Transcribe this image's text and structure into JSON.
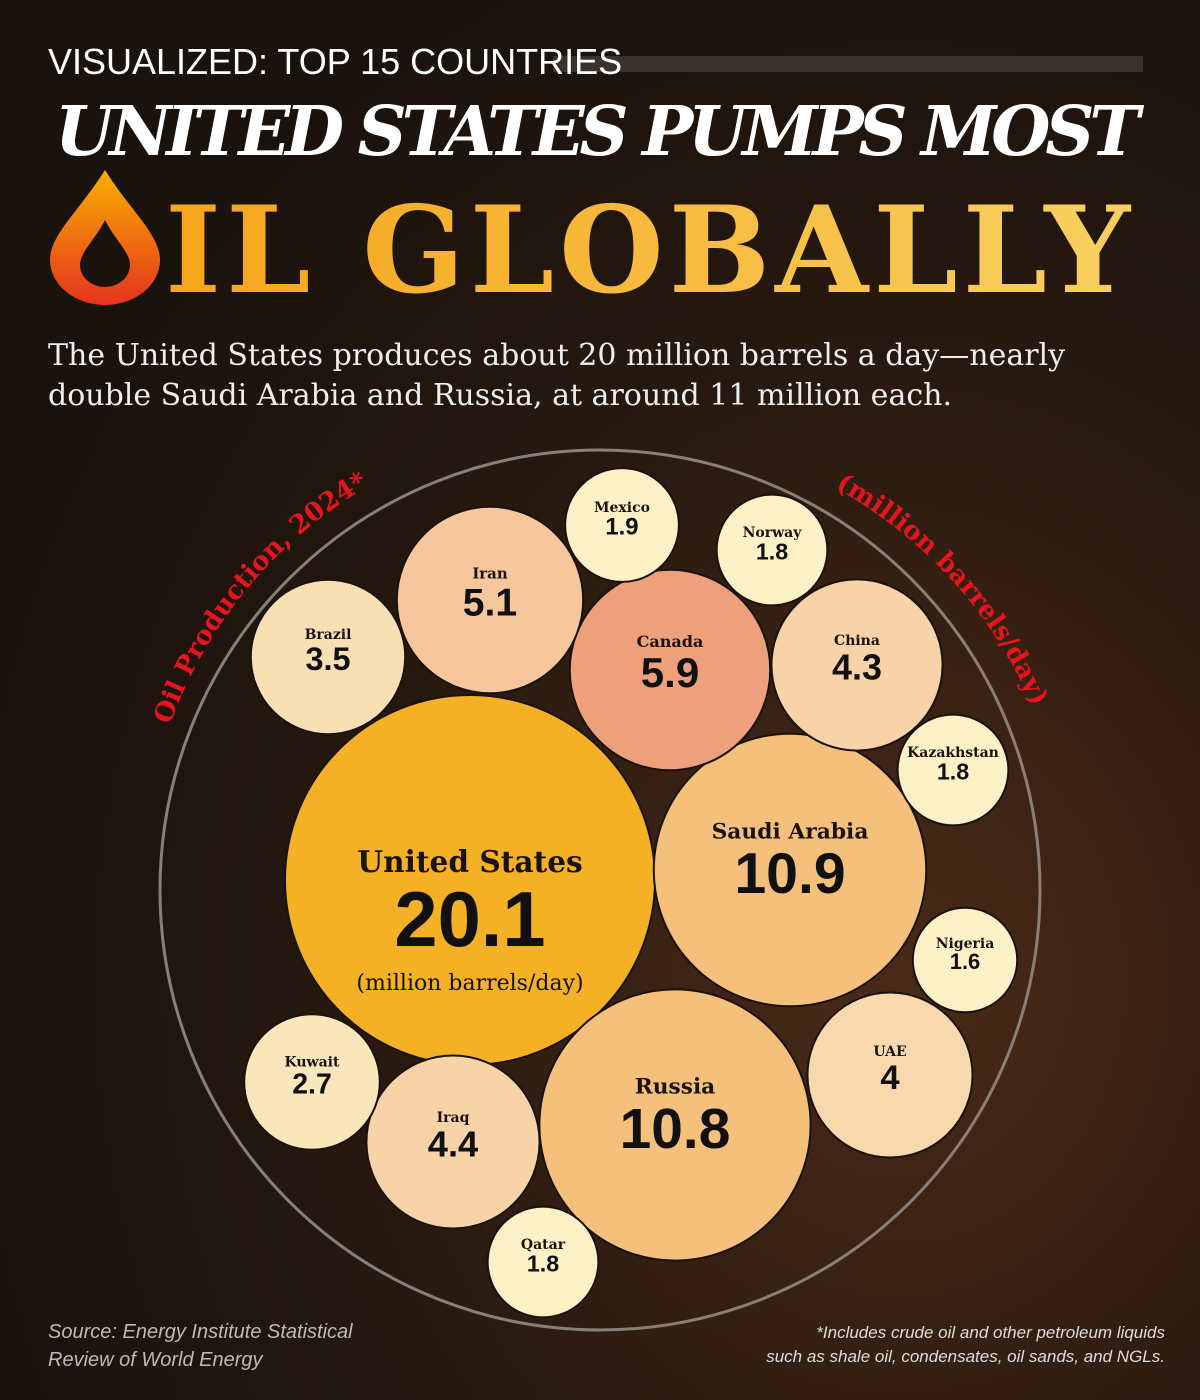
{
  "header": {
    "kicker": "VISUALIZED: TOP 15 COUNTRIES",
    "title_line1": "UNITED STATES PUMPS MOST",
    "title_line2": "IL GLOBALLY",
    "subtitle_line1": "The United States produces about 20 million barrels a day—nearly",
    "subtitle_line2": "double Saudi Arabia and Russia, at around 11 million each."
  },
  "chart_data": {
    "type": "bubble",
    "arc_label_left": "Oil Production, 2024*",
    "arc_label_right": "(million barrels/day)",
    "unit_label": "(million barrels/day)",
    "categories": [
      "United States",
      "Saudi Arabia",
      "Russia",
      "Canada",
      "Iran",
      "Iraq",
      "China",
      "UAE",
      "Brazil",
      "Kuwait",
      "Mexico",
      "Norway",
      "Kazakhstan",
      "Qatar",
      "Nigeria"
    ],
    "values": [
      20.1,
      10.9,
      10.8,
      5.9,
      5.1,
      4.4,
      4.3,
      4.0,
      3.5,
      2.7,
      1.9,
      1.8,
      1.8,
      1.8,
      1.6
    ],
    "colors": [
      "#f5b125",
      "#f4c07c",
      "#f4c07c",
      "#eea07c",
      "#f6c69c",
      "#f7d3a7",
      "#f7d3a7",
      "#f8d9ae",
      "#f9dfb4",
      "#fae6bb",
      "#fcf1c6",
      "#fcf1c6",
      "#fcf1c6",
      "#fcf1c6",
      "#fcf1c6"
    ]
  },
  "footer": {
    "source_line1": "Source: Energy Institute Statistical",
    "source_line2": "Review of World Energy",
    "note_line1": "*Includes crude oil and other petroleum liquids",
    "note_line2": "such as shale oil, condensates, oil sands, and NGLs."
  }
}
